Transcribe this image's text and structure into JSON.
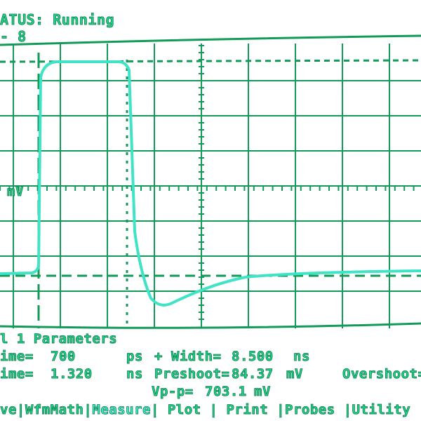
{
  "status": {
    "label": "ATUS: Running",
    "line2": "- 8"
  },
  "scale_label": "mV",
  "colors": {
    "grid": "#139a58",
    "trace": "#3fe3c6",
    "text": "#22d38a"
  },
  "parameters": {
    "title": "l 1 Parameters",
    "row1": {
      "label": "ime=",
      "value": "700",
      "unit": "ps",
      "param": "+ Width=",
      "param_value": "8.500",
      "param_unit": "ns"
    },
    "row2": {
      "label": "ime=",
      "value": "1.320",
      "unit": "ns",
      "param": "Preshoot=",
      "param_value": "84.37",
      "param_unit": "mV",
      "extra": "Overshoot="
    },
    "row3": {
      "param": "Vp-p=",
      "param_value": "703.1",
      "param_unit": "mV"
    }
  },
  "menu": [
    {
      "label": "ve"
    },
    {
      "label": "WfmMath"
    },
    {
      "label": "Measure",
      "active": true
    },
    {
      "label": " Plot "
    },
    {
      "label": " Print "
    },
    {
      "label": "Probes "
    },
    {
      "label": "Utility"
    }
  ]
}
